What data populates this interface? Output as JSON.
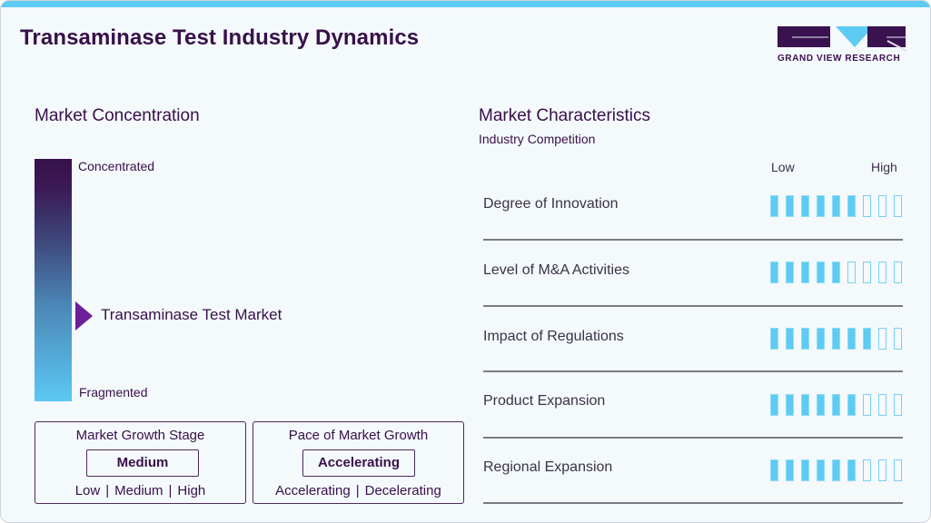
{
  "header": {
    "title": "Transaminase Test Industry Dynamics",
    "logo_text": "GRAND VIEW RESEARCH"
  },
  "concentration": {
    "title": "Market Concentration",
    "top_label": "Concentrated",
    "bottom_label": "Fragmented",
    "market_label": "Transaminase Test Market",
    "marker_position_pct_from_top": 65
  },
  "growth_stage": {
    "title": "Market Growth Stage",
    "value": "Medium",
    "options": [
      "Low",
      "Medium",
      "High"
    ],
    "separator": "|"
  },
  "growth_pace": {
    "title": "Pace of Market Growth",
    "value": "Accelerating",
    "options": [
      "Accelerating",
      "Decelerating"
    ],
    "separator": "|"
  },
  "characteristics": {
    "title": "Market Characteristics",
    "subtitle": "Industry Competition",
    "scale_low": "Low",
    "scale_high": "High",
    "scale_max": 9,
    "colors": {
      "filled": "#5ecbf3",
      "empty_border": "#77d1f3"
    },
    "rows": [
      {
        "label": "Degree of Innovation",
        "rating": 6
      },
      {
        "label": "Level of M&A Activities",
        "rating": 5
      },
      {
        "label": "Impact of Regulations",
        "rating": 7
      },
      {
        "label": "Product Expansion",
        "rating": 6
      },
      {
        "label": "Regional Expansion",
        "rating": 6
      }
    ]
  },
  "colors": {
    "accent": "#5ecbf3",
    "brand_dark": "#371149",
    "marker": "#6b1f9a",
    "background": "#f4f9fc"
  }
}
